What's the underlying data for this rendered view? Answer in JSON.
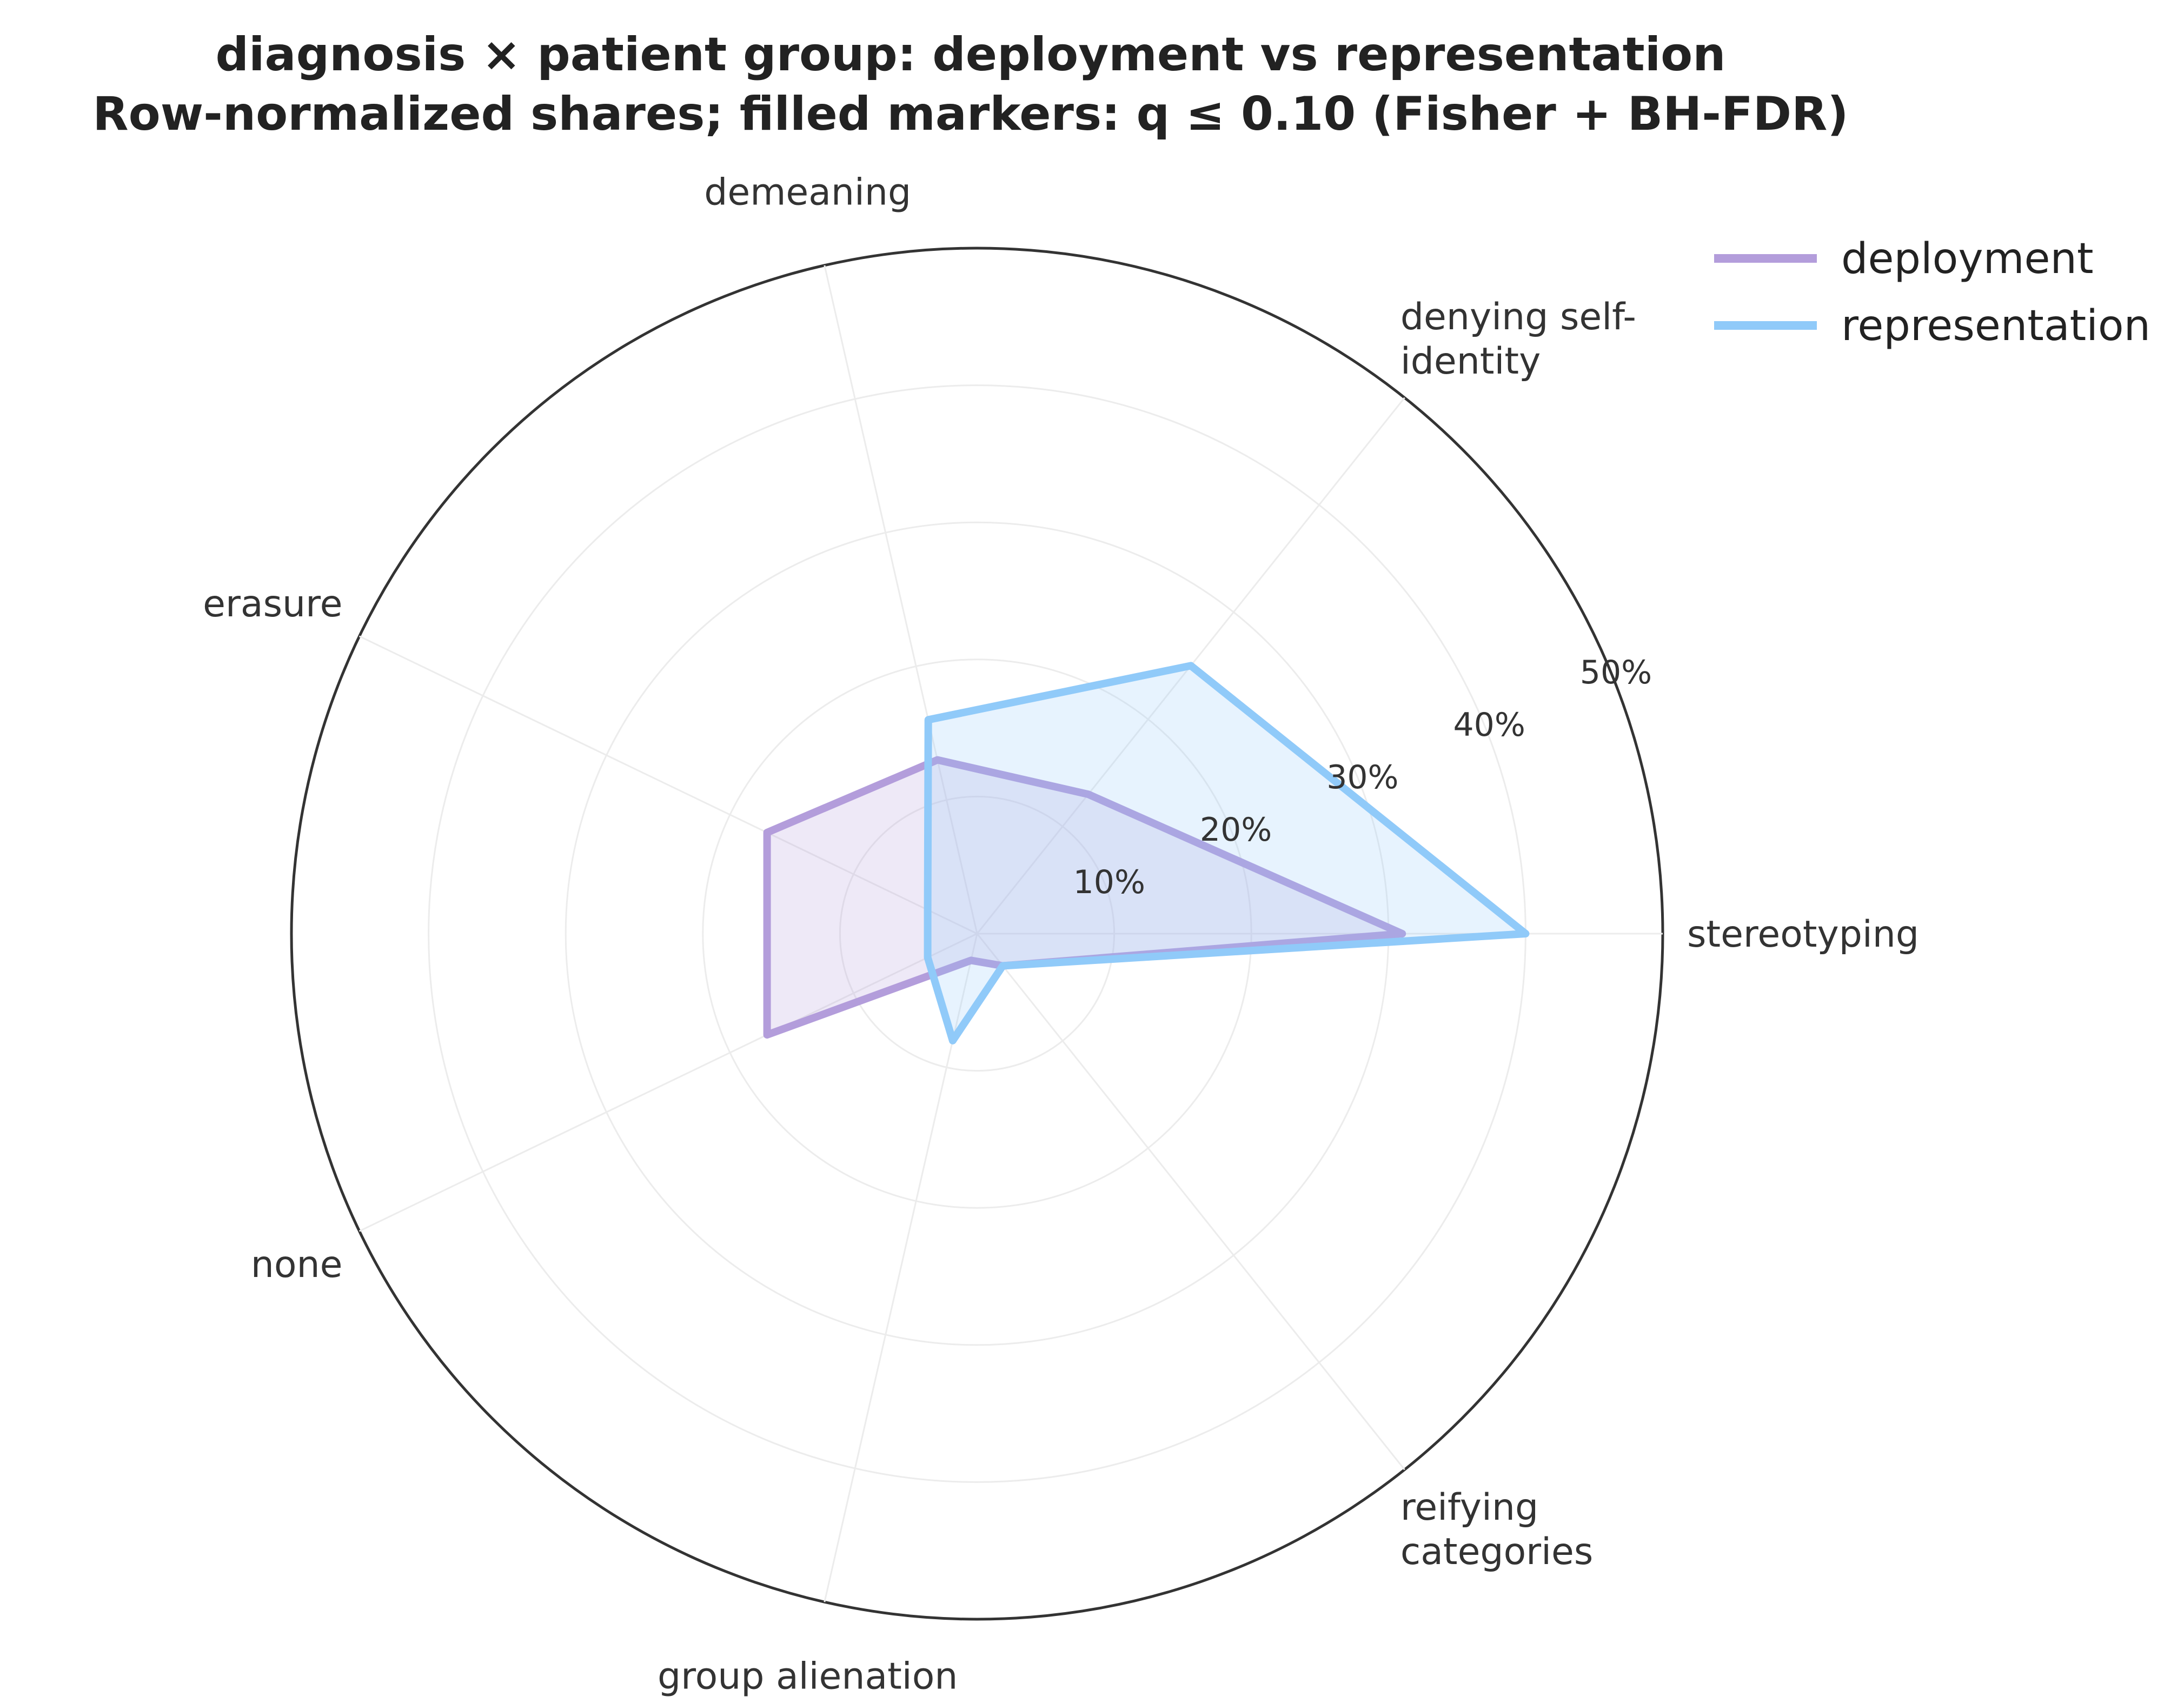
{
  "chart_data": {
    "type": "radar",
    "title_lines": [
      "diagnosis × patient group: deployment vs representation",
      "Row-normalized shares; filled markers: q ≤ 0.10 (Fisher + BH-FDR)"
    ],
    "categories": [
      [
        "stereotyping"
      ],
      [
        "denying self-",
        "identity"
      ],
      [
        "demeaning"
      ],
      [
        "erasure"
      ],
      [
        "none"
      ],
      [
        "group alienation"
      ],
      [
        "reifying",
        "categories"
      ]
    ],
    "radial_ticks": [
      10,
      20,
      30,
      40,
      50
    ],
    "radial_tick_labels": [
      "10%",
      "20%",
      "30%",
      "40%",
      "50%"
    ],
    "rmax": 50,
    "series": [
      {
        "name": "deployment",
        "color": "#b39ddb",
        "values": [
          31,
          13,
          13,
          17,
          17,
          2,
          3
        ]
      },
      {
        "name": "representation",
        "color": "#90caf9",
        "values": [
          40,
          25,
          16,
          4,
          4,
          8,
          3
        ]
      }
    ],
    "grid": true,
    "legend": "top-right"
  }
}
